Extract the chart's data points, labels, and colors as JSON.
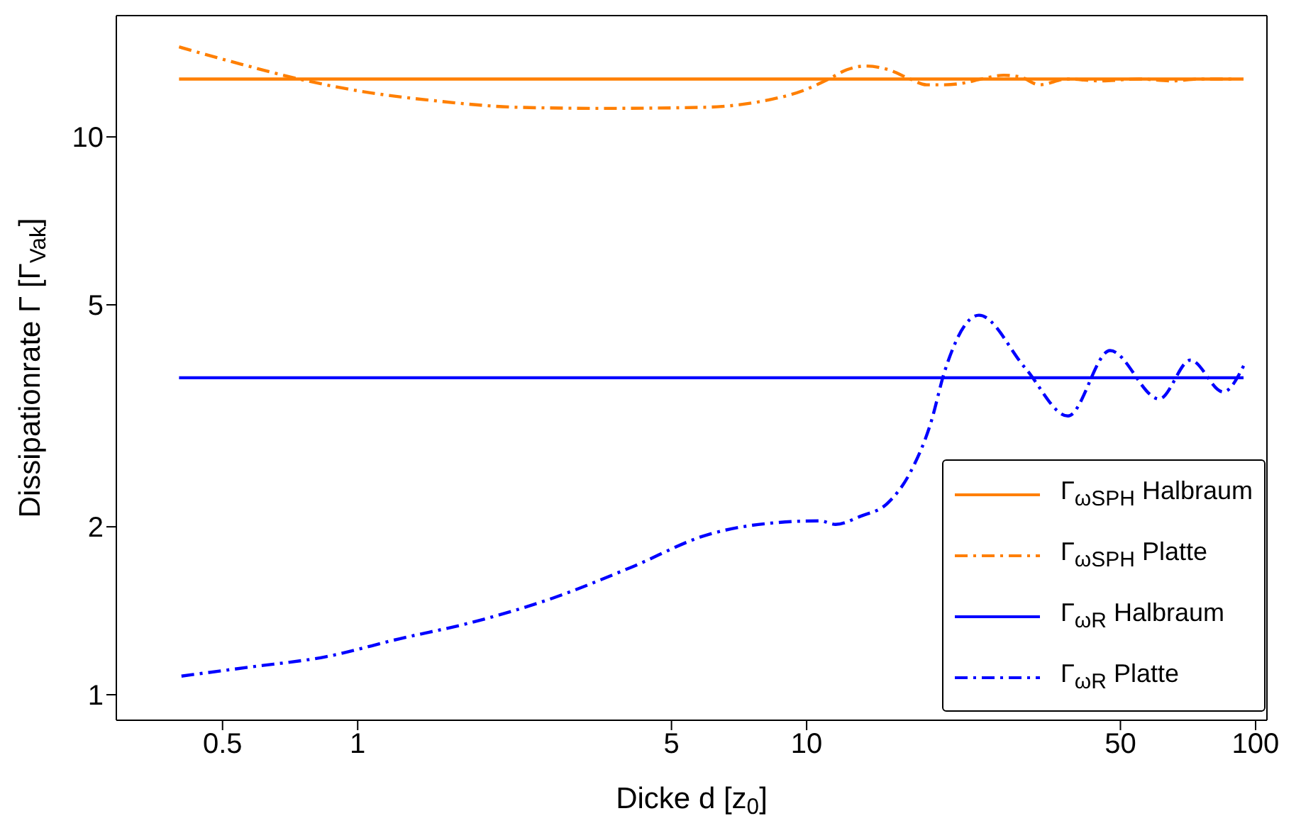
{
  "chart_data": {
    "type": "line",
    "xlabel": "Dicke d [z$_{0}$]",
    "ylabel": "Dissipationrate Γ [Γ$_{Vak}$]",
    "log": "xy",
    "legend": "bottom right",
    "xlim": [
      0.29,
      106
    ],
    "ylim": [
      0.9,
      16.5
    ],
    "xticks": [
      0.5,
      1,
      5,
      10,
      50,
      100
    ],
    "yticks": [
      1,
      2,
      5,
      10
    ],
    "series": [
      {
        "name": "Γ$_{ωSPH}$ Halbraum",
        "color": "#ff7f00",
        "line_style": "solid",
        "x": [
          0.4,
          94
        ],
        "values": [
          12.7,
          12.7
        ]
      },
      {
        "name": "Γ$_{ωSPH}$ Platte",
        "color": "#ff7f00",
        "line_style": "dashed",
        "x": [
          0.4,
          0.55,
          0.74,
          1.0,
          1.5,
          2.28,
          3.5,
          5.9,
          8.0,
          9.8,
          11.2,
          12.3,
          13.5,
          15.2,
          17.0,
          18.5,
          20.3,
          22.5,
          24.5,
          27.5,
          30,
          33,
          38,
          45,
          55,
          65,
          75,
          90
        ],
        "values": [
          14.5,
          13.5,
          12.7,
          12.1,
          11.6,
          11.3,
          11.25,
          11.3,
          11.6,
          12.1,
          12.7,
          13.2,
          13.4,
          13.2,
          12.7,
          12.4,
          12.4,
          12.5,
          12.7,
          12.9,
          12.8,
          12.4,
          12.7,
          12.6,
          12.7,
          12.6,
          12.7,
          12.7
        ]
      },
      {
        "name": "Γ$_{ωR}$ Halbraum",
        "color": "#0000ff",
        "line_style": "solid",
        "x": [
          0.4,
          94
        ],
        "values": [
          3.7,
          3.7
        ]
      },
      {
        "name": "Γ$_{ωR}$ Platte",
        "color": "#0000ff",
        "line_style": "dashed",
        "x": [
          0.405,
          0.57,
          0.85,
          1.24,
          1.81,
          2.72,
          4.05,
          6.07,
          8.3,
          10.7,
          11.6,
          13.2,
          15.1,
          17,
          18.9,
          20.3,
          24.2,
          30.7,
          38.2,
          47.4,
          61,
          71.6,
          84.7,
          94.4
        ],
        "values": [
          1.08,
          1.12,
          1.17,
          1.26,
          1.35,
          1.49,
          1.69,
          1.94,
          2.03,
          2.05,
          2.02,
          2.09,
          2.2,
          2.5,
          3.07,
          3.8,
          4.79,
          3.85,
          3.16,
          4.14,
          3.39,
          3.98,
          3.49,
          3.91
        ]
      }
    ]
  }
}
